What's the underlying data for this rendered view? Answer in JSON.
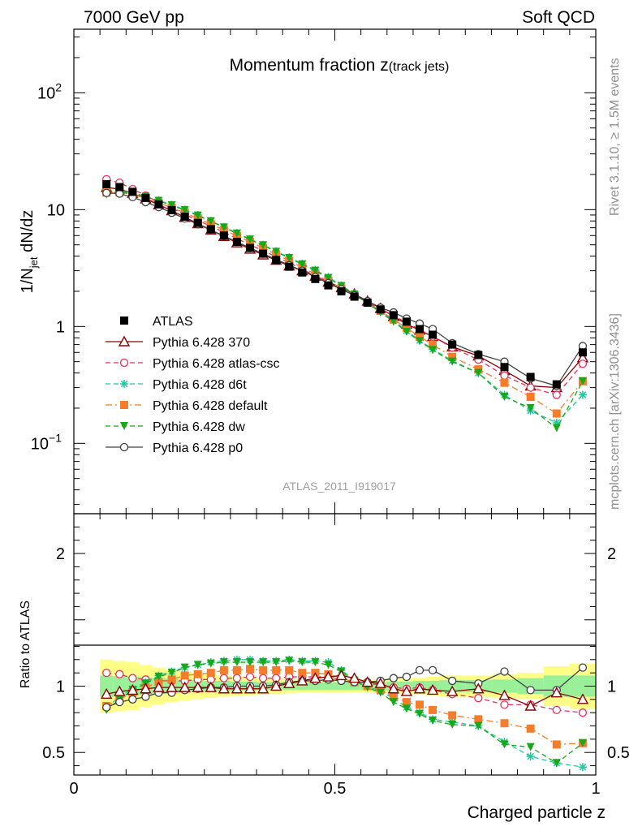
{
  "header": {
    "left": "7000 GeV pp",
    "right": "Soft QCD"
  },
  "plot_title": {
    "main": "Momentum fraction z",
    "sub": "(track jets)"
  },
  "analysis_label": "ATLAS_2011_I919017",
  "side_labels": {
    "rivet": "Rivet 3.1.10, ≥ 1.5M events",
    "mcplots": "mcplots.cern.ch [arXiv:1306.3436]"
  },
  "chart_data": [
    {
      "type": "line",
      "panel": "main",
      "ylabel": "1/N_jet dN/dz",
      "yscale": "log",
      "ylim": [
        0.025,
        350
      ],
      "xlim": [
        0,
        1
      ],
      "yticks": [
        {
          "value": 0.1,
          "label": "10",
          "exp": "−1"
        },
        {
          "value": 1,
          "label": "1",
          "exp": ""
        },
        {
          "value": 10,
          "label": "10",
          "exp": ""
        },
        {
          "value": 100,
          "label": "10",
          "exp": "2"
        }
      ],
      "legend_position": "left-middle",
      "x": [
        0.0625,
        0.0875,
        0.1125,
        0.1375,
        0.1625,
        0.1875,
        0.2125,
        0.2375,
        0.2625,
        0.2875,
        0.3125,
        0.3375,
        0.3625,
        0.3875,
        0.4125,
        0.4375,
        0.4625,
        0.4875,
        0.5125,
        0.5375,
        0.5625,
        0.5875,
        0.6125,
        0.6375,
        0.6625,
        0.6875,
        0.725,
        0.775,
        0.825,
        0.875,
        0.925,
        0.975
      ],
      "series": [
        {
          "name": "ATLAS",
          "color": "#000000",
          "marker": "filled-square",
          "dash": "none",
          "values": [
            16.5,
            15.6,
            14.2,
            12.6,
            11.1,
            9.9,
            8.7,
            7.7,
            6.8,
            6.0,
            5.3,
            4.7,
            4.2,
            3.7,
            3.25,
            2.9,
            2.55,
            2.25,
            2.0,
            1.8,
            1.6,
            1.4,
            1.25,
            1.1,
            0.95,
            0.85,
            0.7,
            0.57,
            0.45,
            0.37,
            0.32,
            0.6
          ]
        },
        {
          "name": "Pythia 6.428 370",
          "color": "#8b0000",
          "marker": "open-triangle",
          "dash": "solid",
          "values": [
            15.5,
            15.0,
            13.8,
            12.4,
            11.0,
            9.8,
            8.6,
            7.6,
            6.7,
            5.9,
            5.2,
            4.6,
            4.1,
            3.7,
            3.3,
            3.0,
            2.7,
            2.4,
            2.15,
            1.9,
            1.65,
            1.43,
            1.22,
            1.05,
            0.93,
            0.82,
            0.67,
            0.56,
            0.42,
            0.31,
            0.3,
            0.54
          ]
        },
        {
          "name": "Pythia 6.428 atlas-csc",
          "color": "#e8305a",
          "marker": "open-circle",
          "dash": "dashed",
          "values": [
            18.2,
            17.0,
            15.0,
            13.2,
            11.6,
            10.3,
            9.1,
            8.1,
            7.2,
            6.4,
            5.65,
            5.0,
            4.45,
            3.95,
            3.5,
            3.1,
            2.72,
            2.4,
            2.1,
            1.85,
            1.62,
            1.42,
            1.24,
            1.08,
            0.94,
            0.82,
            0.66,
            0.52,
            0.38,
            0.3,
            0.26,
            0.48
          ]
        },
        {
          "name": "Pythia 6.428 d6t",
          "color": "#20c8a0",
          "marker": "star",
          "dash": "dashed",
          "values": [
            13.8,
            14.4,
            14.0,
            13.0,
            12.0,
            11.0,
            10.0,
            9.0,
            8.0,
            7.1,
            6.3,
            5.6,
            5.0,
            4.4,
            3.9,
            3.45,
            3.05,
            2.65,
            2.25,
            1.9,
            1.6,
            1.35,
            1.12,
            0.92,
            0.76,
            0.64,
            0.51,
            0.4,
            0.26,
            0.19,
            0.15,
            0.26
          ]
        },
        {
          "name": "Pythia 6.428 default",
          "color": "#f57c2a",
          "marker": "filled-square",
          "dash": "dashdot",
          "values": [
            14.0,
            14.1,
            13.5,
            12.5,
            11.4,
            10.4,
            9.4,
            8.4,
            7.5,
            6.7,
            5.95,
            5.3,
            4.7,
            4.15,
            3.65,
            3.2,
            2.8,
            2.45,
            2.12,
            1.85,
            1.6,
            1.36,
            1.15,
            0.97,
            0.82,
            0.7,
            0.55,
            0.43,
            0.33,
            0.25,
            0.18,
            0.34
          ]
        },
        {
          "name": "Pythia 6.428 dw",
          "color": "#18a818",
          "marker": "filled-triangle-down",
          "dash": "dashed",
          "values": [
            13.5,
            14.0,
            13.8,
            12.9,
            11.9,
            10.9,
            9.9,
            8.9,
            7.95,
            7.05,
            6.25,
            5.55,
            4.95,
            4.35,
            3.85,
            3.4,
            3.0,
            2.6,
            2.22,
            1.88,
            1.58,
            1.32,
            1.1,
            0.9,
            0.75,
            0.63,
            0.5,
            0.4,
            0.25,
            0.2,
            0.135,
            0.34
          ]
        },
        {
          "name": "Pythia 6.428 p0",
          "color": "#404040",
          "marker": "open-circle",
          "dash": "solid",
          "values": [
            13.9,
            13.7,
            12.8,
            11.6,
            10.5,
            9.4,
            8.4,
            7.5,
            6.7,
            5.95,
            5.3,
            4.7,
            4.2,
            3.75,
            3.35,
            3.0,
            2.65,
            2.35,
            2.08,
            1.85,
            1.65,
            1.45,
            1.32,
            1.17,
            1.06,
            0.95,
            0.72,
            0.58,
            0.5,
            0.36,
            0.31,
            0.68
          ]
        }
      ]
    },
    {
      "type": "line",
      "panel": "ratio",
      "xlabel": "Charged particle z",
      "ylabel": "Ratio to ATLAS",
      "ylim": [
        0.33,
        2.3
      ],
      "xlim": [
        0,
        1
      ],
      "xticks": [
        {
          "value": 0,
          "label": "0"
        },
        {
          "value": 0.5,
          "label": "0.5"
        },
        {
          "value": 1,
          "label": "1"
        }
      ],
      "yticks": [
        {
          "value": 0.5,
          "label": "0.5"
        },
        {
          "value": 1,
          "label": "1"
        },
        {
          "value": 2,
          "label": "2"
        }
      ],
      "bands": {
        "outer_color": "#ffff88",
        "inner_color": "#99f099",
        "edges": [
          0.05,
          0.075,
          0.1,
          0.125,
          0.15,
          0.175,
          0.2,
          0.225,
          0.25,
          0.275,
          0.3,
          0.325,
          0.35,
          0.375,
          0.4,
          0.425,
          0.45,
          0.475,
          0.5,
          0.525,
          0.55,
          0.575,
          0.6,
          0.625,
          0.65,
          0.675,
          0.7,
          0.75,
          0.8,
          0.85,
          0.9,
          0.95,
          1.0
        ],
        "outer_half_width": [
          0.2,
          0.19,
          0.18,
          0.16,
          0.14,
          0.12,
          0.11,
          0.1,
          0.09,
          0.08,
          0.075,
          0.07,
          0.065,
          0.06,
          0.055,
          0.05,
          0.05,
          0.05,
          0.05,
          0.05,
          0.05,
          0.05,
          0.055,
          0.06,
          0.065,
          0.07,
          0.08,
          0.08,
          0.09,
          0.1,
          0.15,
          0.17
        ],
        "inner_half_width": [
          0.08,
          0.075,
          0.07,
          0.065,
          0.06,
          0.055,
          0.05,
          0.045,
          0.04,
          0.04,
          0.035,
          0.035,
          0.03,
          0.03,
          0.03,
          0.03,
          0.03,
          0.03,
          0.03,
          0.03,
          0.03,
          0.03,
          0.035,
          0.035,
          0.04,
          0.04,
          0.045,
          0.045,
          0.05,
          0.06,
          0.08,
          0.08
        ]
      },
      "x": [
        0.0625,
        0.0875,
        0.1125,
        0.1375,
        0.1625,
        0.1875,
        0.2125,
        0.2375,
        0.2625,
        0.2875,
        0.3125,
        0.3375,
        0.3625,
        0.3875,
        0.4125,
        0.4375,
        0.4625,
        0.4875,
        0.5125,
        0.5375,
        0.5625,
        0.5875,
        0.6125,
        0.6375,
        0.6625,
        0.6875,
        0.725,
        0.775,
        0.825,
        0.875,
        0.925,
        0.975
      ],
      "series": [
        {
          "name": "Pythia 6.428 370",
          "color": "#8b0000",
          "marker": "open-triangle",
          "dash": "solid",
          "values": [
            0.94,
            0.96,
            0.97,
            0.98,
            0.99,
            0.99,
            0.99,
            0.99,
            0.99,
            0.98,
            0.98,
            0.98,
            0.98,
            1.0,
            1.02,
            1.04,
            1.06,
            1.07,
            1.08,
            1.06,
            1.03,
            1.02,
            0.98,
            0.96,
            0.98,
            0.97,
            0.96,
            0.98,
            0.93,
            0.85,
            0.95,
            0.9
          ]
        },
        {
          "name": "Pythia 6.428 atlas-csc",
          "color": "#e8305a",
          "marker": "open-circle",
          "dash": "dashed",
          "values": [
            1.1,
            1.09,
            1.06,
            1.05,
            1.04,
            1.04,
            1.04,
            1.05,
            1.05,
            1.06,
            1.06,
            1.07,
            1.06,
            1.06,
            1.07,
            1.07,
            1.07,
            1.07,
            1.05,
            1.04,
            1.02,
            1.01,
            0.99,
            0.98,
            0.99,
            0.97,
            0.94,
            0.91,
            0.86,
            0.86,
            0.82,
            0.8
          ]
        },
        {
          "name": "Pythia 6.428 d6t",
          "color": "#20c8a0",
          "marker": "star",
          "dash": "dashed",
          "values": [
            0.84,
            0.92,
            0.98,
            1.03,
            1.08,
            1.11,
            1.14,
            1.16,
            1.18,
            1.19,
            1.2,
            1.2,
            1.19,
            1.19,
            1.2,
            1.19,
            1.19,
            1.18,
            1.12,
            1.05,
            1.0,
            0.96,
            0.91,
            0.84,
            0.8,
            0.75,
            0.73,
            0.7,
            0.58,
            0.47,
            0.42,
            0.39
          ]
        },
        {
          "name": "Pythia 6.428 default",
          "color": "#f57c2a",
          "marker": "filled-square",
          "dash": "dashdot",
          "values": [
            0.85,
            0.9,
            0.95,
            0.99,
            1.03,
            1.05,
            1.08,
            1.09,
            1.1,
            1.12,
            1.12,
            1.13,
            1.12,
            1.12,
            1.12,
            1.1,
            1.1,
            1.09,
            1.06,
            1.03,
            1.0,
            0.97,
            0.92,
            0.88,
            0.86,
            0.82,
            0.78,
            0.75,
            0.72,
            0.68,
            0.56,
            0.57
          ]
        },
        {
          "name": "Pythia 6.428 dw",
          "color": "#18a818",
          "marker": "filled-triangle-down",
          "dash": "dashed",
          "values": [
            0.82,
            0.9,
            0.97,
            1.02,
            1.07,
            1.1,
            1.14,
            1.16,
            1.17,
            1.18,
            1.18,
            1.18,
            1.18,
            1.18,
            1.19,
            1.18,
            1.18,
            1.16,
            1.11,
            1.04,
            0.99,
            0.95,
            0.88,
            0.83,
            0.79,
            0.74,
            0.71,
            0.7,
            0.56,
            0.54,
            0.42,
            0.57
          ]
        },
        {
          "name": "Pythia 6.428 p0",
          "color": "#404040",
          "marker": "open-circle",
          "dash": "solid",
          "values": [
            0.84,
            0.88,
            0.9,
            0.92,
            0.95,
            0.95,
            0.97,
            0.98,
            0.99,
            0.99,
            1.0,
            1.0,
            1.0,
            1.01,
            1.03,
            1.04,
            1.04,
            1.05,
            1.04,
            1.03,
            1.03,
            1.04,
            1.06,
            1.07,
            1.12,
            1.12,
            1.04,
            1.02,
            1.11,
            0.97,
            0.97,
            1.14
          ]
        }
      ]
    }
  ]
}
